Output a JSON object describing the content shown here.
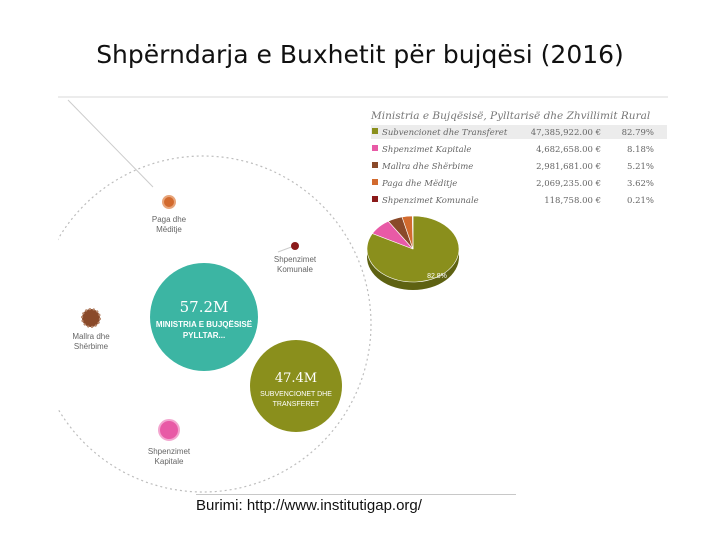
{
  "slide": {
    "title": "Shpërndarja e Buxhetit për bujqësi (2016)",
    "source": "Burimi: http://www.institutigap.org/"
  },
  "chart_data": [
    {
      "type": "bubble",
      "center": {
        "value": "57.2M",
        "label_line1": "MINISTRIA E BUJQËSISË",
        "label_line2": "PYLLTAR..."
      },
      "highlight": {
        "value": "47.4M",
        "label_line1": "SUBVENCIONET DHE",
        "label_line2": "TRANSFERET"
      },
      "satellites": [
        {
          "label_line1": "Paga dhe",
          "label_line2": "Mëditje",
          "color": "#d26a2e"
        },
        {
          "label_line1": "Shpenzimet",
          "label_line2": "Komunale",
          "color": "#8b1a1a"
        },
        {
          "label_line1": "Mallra dhe",
          "label_line2": "Shërbime",
          "color": "#8a4a2a"
        },
        {
          "label_line1": "Shpenzimet",
          "label_line2": "Kapitale",
          "color": "#e85aa6"
        }
      ]
    },
    {
      "type": "pie",
      "title": "Ministria e Bujqësisë, Pylltarisë dhe Zhvillimit Rural",
      "slices": [
        {
          "name": "Subvencionet dhe Transferet",
          "amount": "47,385,922.00 €",
          "percent_label": "82.79%",
          "value": 82.79,
          "color": "#8a8f1c"
        },
        {
          "name": "Shpenzimet Kapitale",
          "amount": "4,682,658.00 €",
          "percent_label": "8.18%",
          "value": 8.18,
          "color": "#e85aa6"
        },
        {
          "name": "Mallra dhe Shërbime",
          "amount": "2,981,681.00 €",
          "percent_label": "5.21%",
          "value": 5.21,
          "color": "#8a4a2a"
        },
        {
          "name": "Paga dhe Mëditje",
          "amount": "2,069,235.00 €",
          "percent_label": "3.62%",
          "value": 3.62,
          "color": "#d26a2e"
        },
        {
          "name": "Shpenzimet Komunale",
          "amount": "118,758.00 €",
          "percent_label": "0.21%",
          "value": 0.21,
          "color": "#8b1a1a"
        }
      ],
      "slice_label": "82.8%"
    }
  ],
  "colors": {
    "teal": "#3cb5a3",
    "olive": "#8a8f1c",
    "ring": "#bdbdbd"
  }
}
